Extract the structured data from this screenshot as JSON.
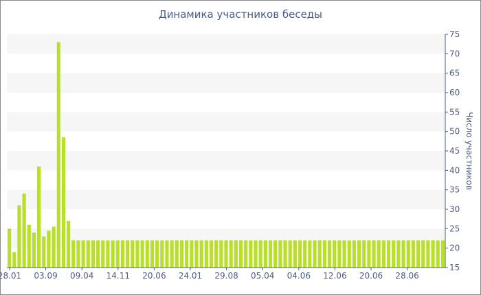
{
  "chart_data": {
    "type": "bar",
    "title": "Динамика участников беседы",
    "xlabel": "",
    "ylabel": "Число участников",
    "ylim": [
      15,
      75
    ],
    "yticks": [
      15,
      20,
      25,
      30,
      35,
      40,
      45,
      50,
      55,
      60,
      65,
      70,
      75
    ],
    "x_tick_labels": [
      "28.01",
      "03.09",
      "09.04",
      "14.11",
      "20.06",
      "24.01",
      "29.08",
      "05.04",
      "04.06",
      "12.06",
      "20.06",
      "28.06"
    ],
    "grid": "horizontal bands",
    "y_axis_position": "right",
    "bar_color": "#b8e02a",
    "values": [
      25,
      19,
      31,
      34,
      26,
      24,
      41,
      23,
      24.5,
      25.5,
      73,
      48.5,
      27,
      22,
      22,
      22,
      22,
      22,
      22,
      22,
      22,
      22,
      22,
      22,
      22,
      22,
      22,
      22,
      22,
      22,
      22,
      22,
      22,
      22,
      22,
      22,
      22,
      22,
      22,
      22,
      22,
      22,
      22,
      22,
      22,
      22,
      22,
      22,
      22,
      22,
      22,
      22,
      22,
      22,
      22,
      22,
      22,
      22,
      22,
      22,
      22,
      22,
      22,
      22,
      22,
      22,
      22,
      22,
      22,
      22,
      22,
      22,
      22,
      22,
      22,
      22,
      22,
      22,
      22,
      22,
      22,
      22,
      22,
      22,
      22,
      22,
      22,
      22,
      22
    ]
  }
}
